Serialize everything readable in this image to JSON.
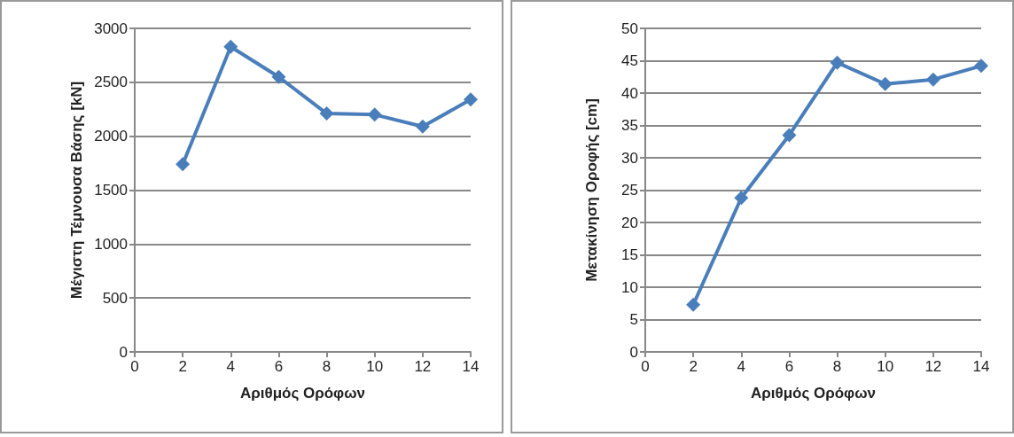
{
  "chart_data": [
    {
      "type": "line",
      "xlabel": "Αριθμός Ορόφων",
      "ylabel": "Μέγιστη Τέμνουσα Βάσης [kN]",
      "x": [
        2,
        4,
        6,
        8,
        10,
        12,
        14
      ],
      "series": [
        {
          "color": "#4a7ebb",
          "values": [
            1740,
            2830,
            2550,
            2210,
            2200,
            2090,
            2340
          ]
        }
      ],
      "xlim": [
        0,
        14
      ],
      "xticks": [
        0,
        2,
        4,
        6,
        8,
        10,
        12,
        14
      ],
      "ylim": [
        0,
        3000
      ],
      "yticks": [
        0,
        500,
        1000,
        1500,
        2000,
        2500,
        3000
      ],
      "grid": "y",
      "marker": "diamond",
      "line_style": "solid"
    },
    {
      "type": "line",
      "xlabel": "Αριθμός Ορόφων",
      "ylabel": "Μετακίνηση Οροφής [cm]",
      "x": [
        2,
        4,
        6,
        8,
        10,
        12,
        14
      ],
      "series": [
        {
          "color": "#4a7ebb",
          "values": [
            7.3,
            23.8,
            33.5,
            44.7,
            41.4,
            42.1,
            44.2
          ]
        }
      ],
      "xlim": [
        0,
        14
      ],
      "xticks": [
        0,
        2,
        4,
        6,
        8,
        10,
        12,
        14
      ],
      "ylim": [
        0,
        50
      ],
      "yticks": [
        0,
        5,
        10,
        15,
        20,
        25,
        30,
        35,
        40,
        45,
        50
      ],
      "grid": "y",
      "marker": "diamond",
      "line_style": "solid"
    }
  ]
}
